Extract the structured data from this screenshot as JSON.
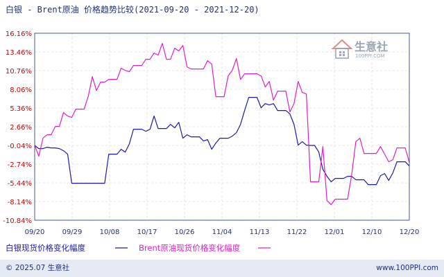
{
  "chart_data": {
    "type": "line",
    "title": "白银 - Brent原油 价格趋势比较(2021-09-20 - 2021-12-20)",
    "y_ticks": [
      "16.16%",
      "13.46%",
      "10.76%",
      "8.06%",
      "5.36%",
      "2.66%",
      "-0.04%",
      "-2.74%",
      "-5.44%",
      "-8.14%",
      "-10.84%"
    ],
    "ylim": [
      -10.84,
      16.16
    ],
    "x_ticks": [
      "09/20",
      "09/29",
      "10/08",
      "10/17",
      "10/26",
      "11/04",
      "11/13",
      "11/22",
      "12/01",
      "12/10",
      "12/20"
    ],
    "x_range": [
      "2021-09-20",
      "2021-12-20"
    ],
    "grid": true,
    "series": [
      {
        "name": "白银现货价格变化幅度",
        "color": "#1a1aa8",
        "points": [
          [
            "2021-09-20",
            -0.04
          ],
          [
            "2021-09-21",
            -0.5
          ],
          [
            "2021-09-22",
            -0.5
          ],
          [
            "2021-09-23",
            -0.3
          ],
          [
            "2021-09-24",
            -0.4
          ],
          [
            "2021-09-25",
            -0.4
          ],
          [
            "2021-09-26",
            -0.5
          ],
          [
            "2021-09-27",
            -0.8
          ],
          [
            "2021-09-28",
            -1.3
          ],
          [
            "2021-09-29",
            -5.5
          ],
          [
            "2021-10-06",
            -5.5
          ],
          [
            "2021-10-07",
            -5.5
          ],
          [
            "2021-10-08",
            -1.3
          ],
          [
            "2021-10-09",
            -1.3
          ],
          [
            "2021-10-10",
            -1.3
          ],
          [
            "2021-10-11",
            -0.6
          ],
          [
            "2021-10-12",
            -1.0
          ],
          [
            "2021-10-13",
            0.2
          ],
          [
            "2021-10-14",
            2.3
          ],
          [
            "2021-10-15",
            2.3
          ],
          [
            "2021-10-16",
            2.3
          ],
          [
            "2021-10-17",
            2.0
          ],
          [
            "2021-10-18",
            2.3
          ],
          [
            "2021-10-19",
            4.2
          ],
          [
            "2021-10-20",
            2.4
          ],
          [
            "2021-10-21",
            2.4
          ],
          [
            "2021-10-22",
            2.4
          ],
          [
            "2021-10-23",
            3.0
          ],
          [
            "2021-10-24",
            2.5
          ],
          [
            "2021-10-25",
            3.3
          ],
          [
            "2021-10-26",
            1.0
          ],
          [
            "2021-10-27",
            1.5
          ],
          [
            "2021-10-28",
            1.2
          ],
          [
            "2021-10-29",
            1.2
          ],
          [
            "2021-10-30",
            1.2
          ],
          [
            "2021-10-31",
            0.6
          ],
          [
            "2021-11-01",
            0.8
          ],
          [
            "2021-11-02",
            -0.6
          ],
          [
            "2021-11-03",
            0.3
          ],
          [
            "2021-11-04",
            1.0
          ],
          [
            "2021-11-05",
            1.0
          ],
          [
            "2021-11-06",
            1.0
          ],
          [
            "2021-11-07",
            1.3
          ],
          [
            "2021-11-08",
            1.8
          ],
          [
            "2021-11-09",
            3.0
          ],
          [
            "2021-11-10",
            5.0
          ],
          [
            "2021-11-11",
            6.9
          ],
          [
            "2021-11-12",
            6.9
          ],
          [
            "2021-11-13",
            6.9
          ],
          [
            "2021-11-14",
            5.4
          ],
          [
            "2021-11-15",
            6.0
          ],
          [
            "2021-11-16",
            5.8
          ],
          [
            "2021-11-17",
            6.0
          ],
          [
            "2021-11-18",
            5.0
          ],
          [
            "2021-11-19",
            5.0
          ],
          [
            "2021-11-20",
            5.0
          ],
          [
            "2021-11-21",
            4.5
          ],
          [
            "2021-11-22",
            3.0
          ],
          [
            "2021-11-23",
            0.0
          ],
          [
            "2021-11-24",
            0.5
          ],
          [
            "2021-11-25",
            0.0
          ],
          [
            "2021-11-26",
            -0.04
          ],
          [
            "2021-11-27",
            -0.04
          ],
          [
            "2021-11-28",
            -1.0
          ],
          [
            "2021-11-29",
            -3.5
          ],
          [
            "2021-11-30",
            -4.5
          ],
          [
            "2021-12-01",
            -5.3
          ],
          [
            "2021-12-02",
            -4.8
          ],
          [
            "2021-12-03",
            -4.8
          ],
          [
            "2021-12-04",
            -4.8
          ],
          [
            "2021-12-05",
            -4.5
          ],
          [
            "2021-12-06",
            -4.5
          ],
          [
            "2021-12-07",
            -5.0
          ],
          [
            "2021-12-08",
            -5.0
          ],
          [
            "2021-12-09",
            -5.0
          ],
          [
            "2021-12-10",
            -5.7
          ],
          [
            "2021-12-11",
            -5.7
          ],
          [
            "2021-12-12",
            -5.7
          ],
          [
            "2021-12-13",
            -4.4
          ],
          [
            "2021-12-14",
            -4.1
          ],
          [
            "2021-12-15",
            -5.1
          ],
          [
            "2021-12-16",
            -4.0
          ],
          [
            "2021-12-17",
            -2.4
          ],
          [
            "2021-12-18",
            -2.4
          ],
          [
            "2021-12-19",
            -2.4
          ],
          [
            "2021-12-20",
            -3.0
          ]
        ]
      },
      {
        "name": "Brent原油现货价格变化幅度",
        "color": "#e01ec8",
        "points": [
          [
            "2021-09-20",
            -0.04
          ],
          [
            "2021-09-21",
            -1.6
          ],
          [
            "2021-09-22",
            1.0
          ],
          [
            "2021-09-23",
            1.5
          ],
          [
            "2021-09-24",
            1.5
          ],
          [
            "2021-09-25",
            2.7
          ],
          [
            "2021-09-26",
            2.7
          ],
          [
            "2021-09-27",
            4.7
          ],
          [
            "2021-09-28",
            4.2
          ],
          [
            "2021-09-29",
            4.0
          ],
          [
            "2021-09-30",
            5.2
          ],
          [
            "2021-10-01",
            5.2
          ],
          [
            "2021-10-02",
            5.2
          ],
          [
            "2021-10-03",
            7.0
          ],
          [
            "2021-10-04",
            9.9
          ],
          [
            "2021-10-05",
            7.9
          ],
          [
            "2021-10-06",
            9.1
          ],
          [
            "2021-10-07",
            9.1
          ],
          [
            "2021-10-08",
            9.5
          ],
          [
            "2021-10-09",
            9.5
          ],
          [
            "2021-10-10",
            9.5
          ],
          [
            "2021-10-11",
            11.1
          ],
          [
            "2021-10-12",
            10.8
          ],
          [
            "2021-10-13",
            10.6
          ],
          [
            "2021-10-14",
            11.5
          ],
          [
            "2021-10-15",
            11.5
          ],
          [
            "2021-10-16",
            11.5
          ],
          [
            "2021-10-17",
            12.4
          ],
          [
            "2021-10-18",
            12.4
          ],
          [
            "2021-10-19",
            13.3
          ],
          [
            "2021-10-20",
            13.0
          ],
          [
            "2021-10-21",
            14.7
          ],
          [
            "2021-10-22",
            12.4
          ],
          [
            "2021-10-23",
            12.4
          ],
          [
            "2021-10-24",
            14.0
          ],
          [
            "2021-10-25",
            13.6
          ],
          [
            "2021-10-26",
            14.4
          ],
          [
            "2021-10-27",
            11.3
          ],
          [
            "2021-10-28",
            11.0
          ],
          [
            "2021-10-29",
            11.0
          ],
          [
            "2021-10-30",
            11.0
          ],
          [
            "2021-10-31",
            11.0
          ],
          [
            "2021-11-01",
            12.2
          ],
          [
            "2021-11-02",
            11.7
          ],
          [
            "2021-11-03",
            7.0
          ],
          [
            "2021-11-04",
            7.0
          ],
          [
            "2021-11-05",
            7.0
          ],
          [
            "2021-11-06",
            10.0
          ],
          [
            "2021-11-07",
            10.8
          ],
          [
            "2021-11-08",
            12.5
          ],
          [
            "2021-11-09",
            9.5
          ],
          [
            "2021-11-10",
            10.3
          ],
          [
            "2021-11-11",
            10.3
          ],
          [
            "2021-11-12",
            10.3
          ],
          [
            "2021-11-13",
            10.3
          ],
          [
            "2021-11-14",
            10.0
          ],
          [
            "2021-11-15",
            8.4
          ],
          [
            "2021-11-16",
            9.2
          ],
          [
            "2021-11-17",
            6.5
          ],
          [
            "2021-11-18",
            7.8
          ],
          [
            "2021-11-19",
            7.8
          ],
          [
            "2021-11-20",
            7.8
          ],
          [
            "2021-11-21",
            4.8
          ],
          [
            "2021-11-22",
            6.0
          ],
          [
            "2021-11-23",
            9.2
          ],
          [
            "2021-11-24",
            7.6
          ],
          [
            "2021-11-25",
            7.4
          ],
          [
            "2021-11-26",
            -5.3
          ],
          [
            "2021-11-27",
            -5.3
          ],
          [
            "2021-11-28",
            -5.3
          ],
          [
            "2021-11-29",
            -0.2
          ],
          [
            "2021-11-30",
            -8.0
          ],
          [
            "2021-12-01",
            -8.6
          ],
          [
            "2021-12-02",
            -7.8
          ],
          [
            "2021-12-03",
            -7.8
          ],
          [
            "2021-12-04",
            -7.8
          ],
          [
            "2021-12-05",
            -7.8
          ],
          [
            "2021-12-06",
            -4.3
          ],
          [
            "2021-12-07",
            0.5
          ],
          [
            "2021-12-08",
            1.0
          ],
          [
            "2021-12-09",
            -1.2
          ],
          [
            "2021-12-10",
            -1.2
          ],
          [
            "2021-12-11",
            -1.2
          ],
          [
            "2021-12-12",
            -1.2
          ],
          [
            "2021-12-13",
            -0.2
          ],
          [
            "2021-12-14",
            -1.3
          ],
          [
            "2021-12-15",
            -2.4
          ],
          [
            "2021-12-16",
            -2.1
          ],
          [
            "2021-12-17",
            -0.4
          ],
          [
            "2021-12-18",
            -0.4
          ],
          [
            "2021-12-19",
            -0.4
          ],
          [
            "2021-12-20",
            -2.5
          ]
        ]
      }
    ]
  },
  "footer": {
    "copyright": "© 2025.07 生意社",
    "website": "www.100PPI.com"
  },
  "watermark": {
    "name": "生意社",
    "sub": "100PPI.COM"
  },
  "colors": {
    "axis": "#1f2f7a",
    "grid": "#cccccc",
    "tick_y": "#cc0000",
    "footer_bg": "#e6eaf5"
  }
}
